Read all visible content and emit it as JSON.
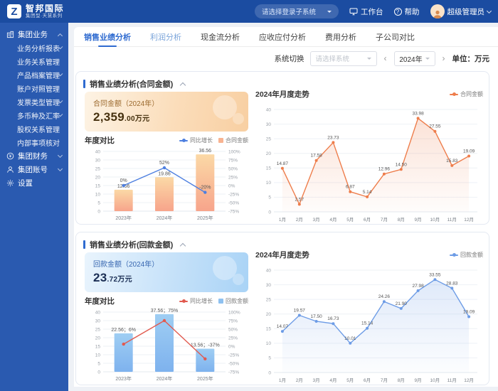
{
  "header": {
    "logo_text": "智邦国际",
    "logo_sub": "集团型·天慧系列",
    "system_select_placeholder": "请选择登录子系统",
    "workbench": "工作台",
    "help": "帮助",
    "user": "超级管理员"
  },
  "sidebar": {
    "items": [
      {
        "label": "集团业务",
        "icon": "org-icon",
        "chevron": "up",
        "level": 0
      },
      {
        "label": "业务分析报表",
        "chevron": "down",
        "level": 1
      },
      {
        "label": "业务关系管理",
        "chevron": "",
        "level": 1
      },
      {
        "label": "产品档案管理",
        "chevron": "down",
        "level": 1
      },
      {
        "label": "账户对照管理",
        "chevron": "",
        "level": 1
      },
      {
        "label": "发票类型管理",
        "chevron": "down",
        "level": 1
      },
      {
        "label": "多币种及汇率",
        "chevron": "down",
        "level": 1
      },
      {
        "label": "股权关系管理",
        "chevron": "",
        "level": 1
      },
      {
        "label": "内部事项核对",
        "chevron": "",
        "level": 1
      },
      {
        "label": "集团财务",
        "icon": "finance-icon",
        "chevron": "down",
        "level": 0
      },
      {
        "label": "集团账号",
        "icon": "account-icon",
        "chevron": "down",
        "level": 0
      },
      {
        "label": "设置",
        "icon": "gear-icon",
        "chevron": "",
        "level": 0
      }
    ]
  },
  "tabs": [
    {
      "label": "销售业绩分析",
      "state": "active"
    },
    {
      "label": "利润分析",
      "state": "highlight"
    },
    {
      "label": "现金流分析",
      "state": "normal"
    },
    {
      "label": "应收应付分析",
      "state": "normal"
    },
    {
      "label": "费用分析",
      "state": "normal"
    },
    {
      "label": "子公司对比",
      "state": "normal"
    }
  ],
  "filter": {
    "switch_label": "系统切换",
    "system_placeholder": "请选择系统",
    "prev": "‹",
    "next": "›",
    "year": "2024年",
    "unit_label": "单位：万元"
  },
  "sections": [
    {
      "title": "销售业绩分析(合同金额)",
      "card": {
        "label": "合同金额（2024年）",
        "value": "2,359",
        "suffix": ".00万元",
        "theme": "orange"
      },
      "colors": {
        "bar_top": "#fbd9a6",
        "bar_bottom": "#f7a48b",
        "bar_legend": "#f8b391",
        "line": "#4d7fe0",
        "trend": "#ee7d4b"
      }
    },
    {
      "title": "销售业绩分析(回款金额)",
      "card": {
        "label": "回款金额（2024年）",
        "value": "23",
        "suffix": ".72万元",
        "theme": "blue"
      },
      "colors": {
        "bar_top": "#9fcef3",
        "bar_bottom": "#7eb2ee",
        "bar_legend": "#8fc1f0",
        "line": "#e15a4f",
        "trend": "#6d9ce6"
      }
    }
  ],
  "chart_data": [
    {
      "type": "bar",
      "title": "年度对比",
      "categories": [
        "2023年",
        "2024年",
        "2025年"
      ],
      "series": [
        {
          "name": "合同金额",
          "type": "bar",
          "values": [
            12.56,
            19.86,
            36.56
          ],
          "labels": [
            "12.56",
            "19.86",
            "36.56"
          ]
        },
        {
          "name": "同比增长",
          "type": "line",
          "axis": "right",
          "values": [
            0,
            52,
            -20
          ],
          "labels": [
            "0%",
            "52%",
            "-20%"
          ]
        }
      ],
      "left_ticks": [
        0,
        5,
        10,
        15,
        20,
        25,
        30,
        40
      ],
      "right_ticks": [
        -75,
        -50,
        -25,
        0,
        25,
        50,
        75,
        100
      ],
      "right_tick_suffix": "%",
      "legend_position": "top-right",
      "grid": true
    },
    {
      "type": "line",
      "title": "2024年月度走势",
      "categories": [
        "1月",
        "2月",
        "3月",
        "4月",
        "5月",
        "6月",
        "7月",
        "8月",
        "9月",
        "10月",
        "11月",
        "12月"
      ],
      "series": [
        {
          "name": "合同金额",
          "type": "line",
          "area": true,
          "values": [
            14.87,
            2.57,
            17.58,
            23.73,
            6.87,
            5.14,
            12.96,
            14.5,
            33.98,
            27.55,
            15.83,
            19.09
          ],
          "labels": [
            "14.87",
            "2.57",
            "17.58",
            "23.73",
            "6.87",
            "5.14",
            "12.96",
            "14.50",
            "33.98",
            "27.55",
            "15.83",
            "19.09"
          ]
        }
      ],
      "left_ticks": [
        0,
        5,
        10,
        15,
        20,
        25,
        30,
        40
      ],
      "legend_position": "top-right",
      "grid": true
    },
    {
      "type": "bar",
      "title": "年度对比",
      "categories": [
        "2023年",
        "2024年",
        "2025年"
      ],
      "series": [
        {
          "name": "回款金额",
          "type": "bar",
          "values": [
            22.56,
            37.56,
            13.56
          ],
          "labels": [
            "22.56；6%",
            "37.56；75%",
            "13.56；-37%"
          ]
        },
        {
          "name": "同比增长",
          "type": "line",
          "axis": "right",
          "values": [
            6,
            75,
            -37
          ],
          "labels": [
            "",
            "",
            ""
          ]
        }
      ],
      "left_ticks": [
        0,
        5,
        10,
        15,
        20,
        25,
        30,
        40
      ],
      "right_ticks": [
        -75,
        -50,
        -25,
        0,
        25,
        50,
        75,
        100
      ],
      "right_tick_suffix": "%",
      "legend_position": "top-right",
      "grid": true
    },
    {
      "type": "line",
      "title": "2024年月度走势",
      "categories": [
        "1月",
        "2月",
        "3月",
        "4月",
        "5月",
        "6月",
        "7月",
        "8月",
        "9月",
        "10月",
        "11月",
        "12月"
      ],
      "series": [
        {
          "name": "回款金额",
          "type": "line",
          "area": true,
          "values": [
            14.07,
            19.57,
            17.5,
            16.73,
            10.01,
            15.14,
            24.26,
            21.9,
            27.98,
            33.55,
            28.83,
            19.09
          ],
          "labels": [
            "14.07",
            "19.57",
            "17.50",
            "16.73",
            "10.01",
            "15.14",
            "24.26",
            "21.90",
            "27.98",
            "33.55",
            "28.83",
            "19.09"
          ]
        }
      ],
      "left_ticks": [
        0,
        5,
        10,
        15,
        20,
        25,
        30,
        40
      ],
      "legend_position": "top-right",
      "grid": true
    }
  ]
}
